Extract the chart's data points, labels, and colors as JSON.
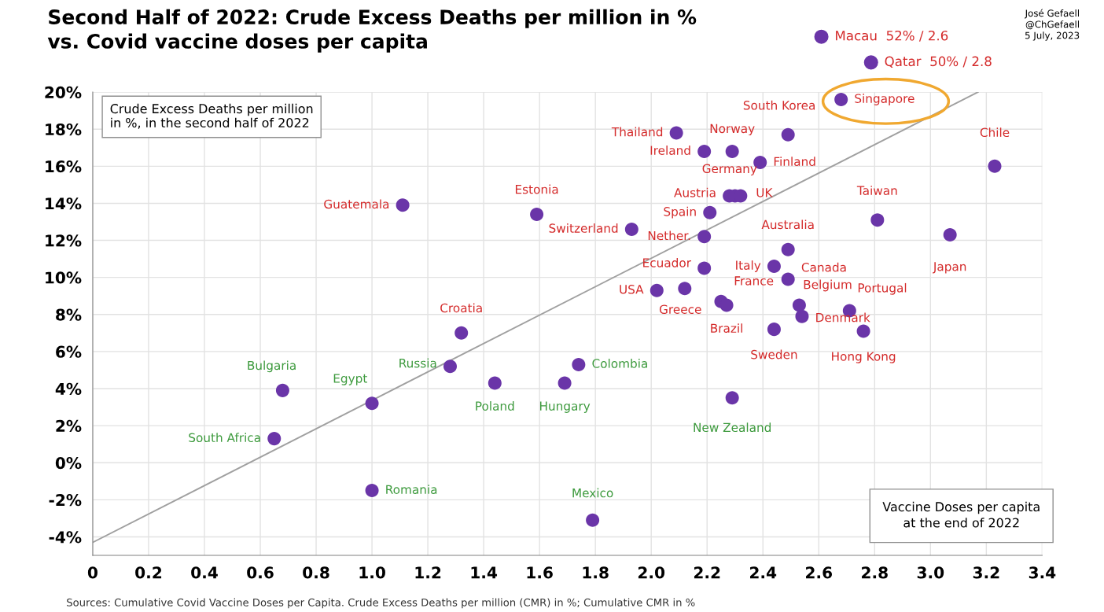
{
  "chart_data": {
    "type": "scatter",
    "title": "Second Half of 2022: Crude Excess Deaths per million in %\nvs. Covid vaccine doses per capita",
    "ylabel": "Crude Excess Deaths per million\nin %, in the second half of 2022",
    "xlabel": "Vaccine Doses per capita\nat the end of 2022",
    "xlim": [
      0,
      3.4
    ],
    "xticks": [
      {
        "value": 0,
        "label": "0"
      },
      {
        "value": 0.2,
        "label": "0.2"
      },
      {
        "value": 0.4,
        "label": "0.4"
      },
      {
        "value": 0.6,
        "label": "0.6"
      },
      {
        "value": 0.8,
        "label": "0.8"
      },
      {
        "value": 1.0,
        "label": "1.0"
      },
      {
        "value": 1.2,
        "label": "1.2"
      },
      {
        "value": 1.4,
        "label": "1.4"
      },
      {
        "value": 1.6,
        "label": "1.6"
      },
      {
        "value": 1.8,
        "label": "1.8"
      },
      {
        "value": 2.0,
        "label": "2.0"
      },
      {
        "value": 2.2,
        "label": "2.2"
      },
      {
        "value": 2.4,
        "label": "2.4"
      },
      {
        "value": 2.6,
        "label": "2.6"
      },
      {
        "value": 2.8,
        "label": "2.8"
      },
      {
        "value": 3.0,
        "label": "3.0"
      },
      {
        "value": 3.2,
        "label": "3.2"
      },
      {
        "value": 3.4,
        "label": "3.4"
      }
    ],
    "ylim": [
      -5,
      20
    ],
    "yticks": [
      {
        "value": -4,
        "label": "-4%"
      },
      {
        "value": -2,
        "label": "-2%"
      },
      {
        "value": 0,
        "label": "0%"
      },
      {
        "value": 2,
        "label": "2%"
      },
      {
        "value": 4,
        "label": "4%"
      },
      {
        "value": 6,
        "label": "6%"
      },
      {
        "value": 8,
        "label": "8%"
      },
      {
        "value": 10,
        "label": "10%"
      },
      {
        "value": 12,
        "label": "12%"
      },
      {
        "value": 14,
        "label": "14%"
      },
      {
        "value": 16,
        "label": "16%"
      },
      {
        "value": 18,
        "label": "18%"
      },
      {
        "value": 20,
        "label": "20%"
      }
    ],
    "grid": true,
    "marker": "circle",
    "series": [
      {
        "color": "#6a35a8",
        "x": [
          2.68,
          2.49,
          2.09,
          2.19,
          2.29,
          2.39,
          2.28,
          2.3,
          2.32,
          2.21,
          1.93,
          2.19,
          2.81,
          3.07,
          3.23,
          2.49,
          2.19,
          2.44,
          2.49,
          2.02,
          2.12,
          2.25,
          2.27,
          2.53,
          2.54,
          2.71,
          2.44,
          2.76,
          1.59,
          1.11,
          1.32
        ],
        "values": [
          19.6,
          17.7,
          17.8,
          16.8,
          16.8,
          16.2,
          14.4,
          14.4,
          14.4,
          13.5,
          12.6,
          12.2,
          13.1,
          12.3,
          16.0,
          11.5,
          10.5,
          10.6,
          9.9,
          9.3,
          9.4,
          8.7,
          8.5,
          8.5,
          7.9,
          8.2,
          7.2,
          7.1,
          13.4,
          13.9,
          7.0
        ],
        "value_labels": [
          "Singapore",
          "South Korea",
          "Thailand",
          "Ireland",
          "Norway",
          "Finland",
          "Austria",
          "Germany",
          "UK",
          "Spain",
          "Switzerland",
          "Nether.",
          "Taiwan",
          "Japan",
          "Chile",
          "Australia",
          "Ecuador",
          "Italy",
          "Canada",
          "USA",
          "Greece",
          "France",
          "Brazil",
          "Belgium",
          "Denmark",
          "Portugal",
          "Sweden",
          "Hong Kong",
          "Estonia",
          "Guatemala",
          "Croatia"
        ]
      },
      {
        "color": "#6a35a8",
        "x": [
          0.68,
          0.65,
          1.0,
          1.28,
          1.44,
          1.69,
          1.74,
          2.29,
          1.0,
          1.79
        ],
        "values": [
          3.9,
          1.3,
          3.2,
          5.2,
          4.3,
          4.3,
          5.3,
          3.5,
          -1.5,
          -3.1
        ],
        "value_labels": [
          "Bulgaria",
          "South Africa",
          "Egypt",
          "Russia",
          "Poland",
          "Hungary",
          "Colombia",
          "New Zealand",
          "Romania",
          "Mexico"
        ]
      },
      {
        "type": "line",
        "marker": "none",
        "color": "#a0a0a0",
        "x": [
          0,
          3.17
        ],
        "values": [
          -4.3,
          20.0
        ]
      }
    ],
    "annotations": [
      "Macau  52% / 2.6",
      "Qatar  50% / 2.8",
      "José Gefaell\n@ChGefaell\n5 July, 2023",
      "Sources: Cumulative Covid Vaccine Doses per Capita. Crude Excess Deaths per million (CMR) in %; Cumulative CMR in %"
    ]
  }
}
